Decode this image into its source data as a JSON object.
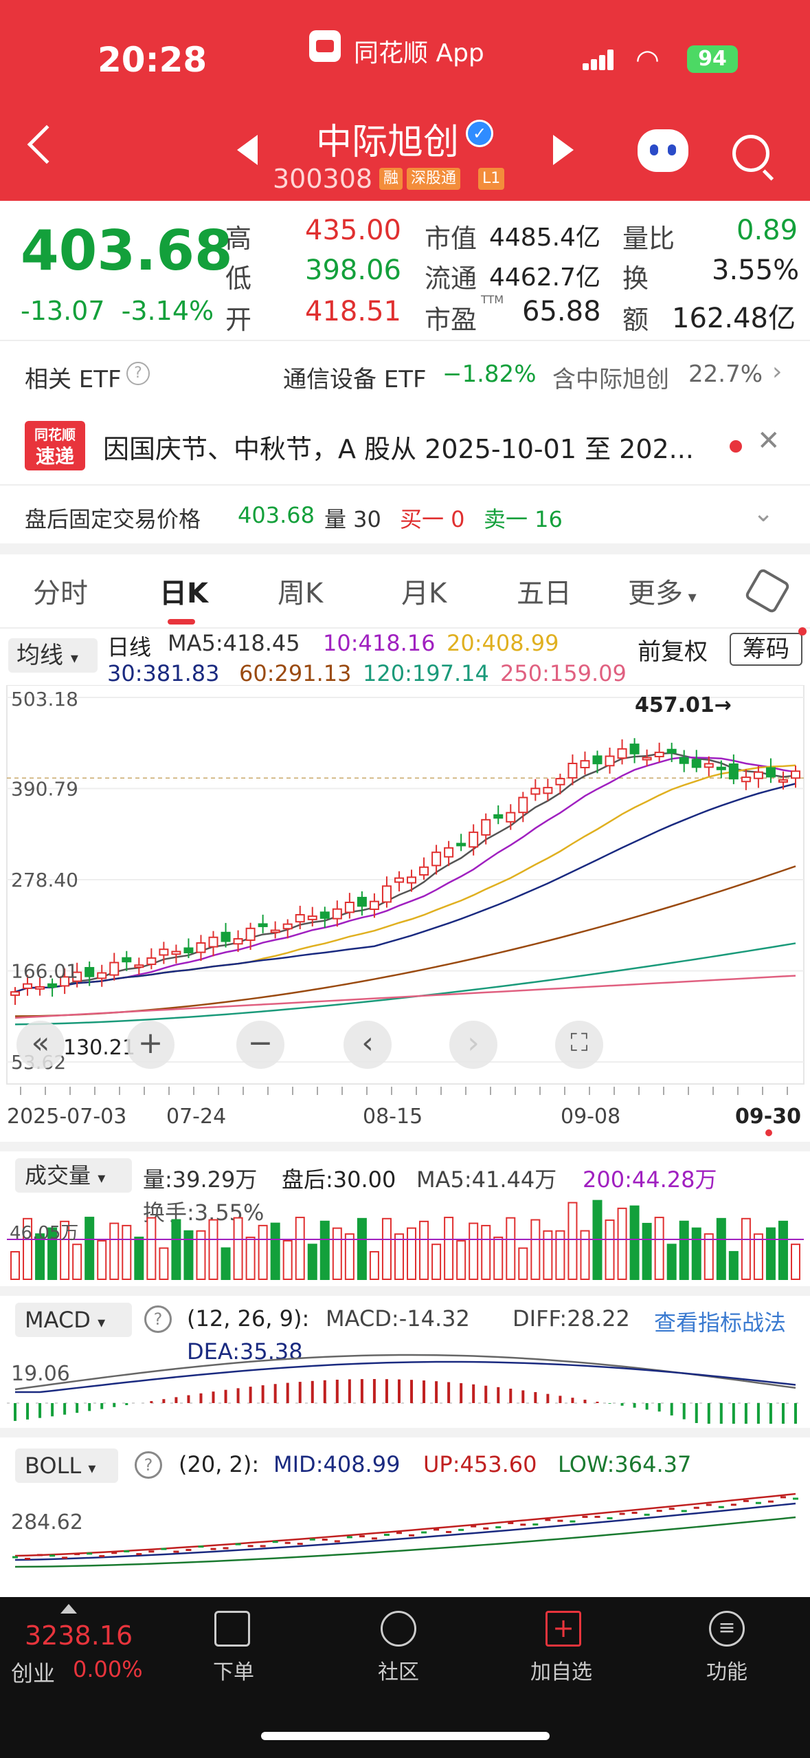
{
  "status": {
    "time": "20:28",
    "app": "同花顺 App",
    "battery": "94"
  },
  "stock": {
    "name": "中际旭创",
    "code": "300308",
    "tags": [
      "融",
      "深股通",
      "L1"
    ]
  },
  "quote": {
    "price": "403.68",
    "change": "-13.07",
    "change_pct": "-3.14%",
    "high_label": "高",
    "high": "435.00",
    "low_label": "低",
    "low": "398.06",
    "open_label": "开",
    "open": "418.51",
    "mktcap_label": "市值",
    "mktcap": "4485.4亿",
    "float_label": "流通",
    "float": "4462.7亿",
    "pe_label": "市盈",
    "pe_sup": "TTM",
    "pe": "65.88",
    "vr_label": "量比",
    "vr": "0.89",
    "turnover_label": "换",
    "turnover": "3.55%",
    "amount_label": "额",
    "amount": "162.48亿"
  },
  "etf": {
    "label": "相关 ETF",
    "name": "通信设备 ETF",
    "pct": "−1.82%",
    "hold_label": "含中际旭创",
    "hold_pct": "22.7%"
  },
  "news": {
    "logo_top": "同花顺",
    "logo_bottom": "速递",
    "text": "因国庆节、中秋节，A 股从 2025-10-01 至 202..."
  },
  "after_hours": {
    "label": "盘后固定交易价格",
    "price": "403.68",
    "vol_label": "量 30",
    "buy": "买一 0",
    "sell": "卖一 16"
  },
  "tabs": [
    "分时",
    "日K",
    "周K",
    "月K",
    "五日",
    "更多"
  ],
  "ma_row": {
    "btn": "均线",
    "type": "日线",
    "ma5": "MA5:418.45",
    "ma10": "10:418.16",
    "ma20": "20:408.99",
    "ma30": "30:381.83",
    "ma60": "60:291.13",
    "ma120": "120:197.14",
    "ma250": "250:159.09",
    "fq": "前复权",
    "chip": "筹码"
  },
  "kchart": {
    "y_ticks": [
      "503.18",
      "390.79",
      "278.40",
      "166.01",
      "53.62"
    ],
    "high_mark": "457.01→",
    "low_mark": "130.21",
    "x_ticks": [
      "2025-07-03",
      "07-24",
      "08-15",
      "09-08",
      "09-30"
    ]
  },
  "volume": {
    "btn": "成交量",
    "vol": "量:39.29万",
    "after": "盘后:30.00",
    "ma5": "MA5:41.44万",
    "ma200": "200:44.28万",
    "turnover": "换手:3.55%",
    "y_tick": "46.05万"
  },
  "macd": {
    "btn": "MACD",
    "params": "(12, 26, 9):",
    "macd": "MACD:-14.32",
    "diff": "DIFF:28.22",
    "dea": "DEA:35.38",
    "link": "查看指标战法",
    "y_tick": "19.06"
  },
  "boll": {
    "btn": "BOLL",
    "params": "(20, 2):",
    "mid": "MID:408.99",
    "up": "UP:453.60",
    "low": "LOW:364.37",
    "y_tick": "284.62"
  },
  "bottom": {
    "index_value": "3238.16",
    "index_name": "创业",
    "index_pct": "0.00%",
    "items": [
      "下单",
      "社区",
      "加自选",
      "功能"
    ]
  },
  "colors": {
    "brand_red": "#e8343c",
    "up": "#e03030",
    "down": "#13a03b"
  }
}
